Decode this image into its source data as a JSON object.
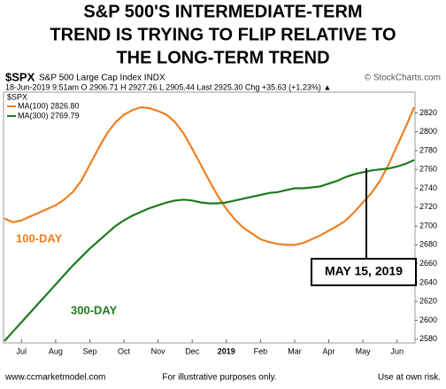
{
  "chart_data": {
    "type": "line",
    "title": [
      "S&P 500'S INTERMEDIATE-TERM",
      "TREND IS TRYING TO FLIP RELATIVE TO",
      "THE LONG-TERM TREND"
    ],
    "symbol": "$SPX",
    "index_name": "S&P 500 Large Cap Index INDX",
    "credit": "© StockCharts.com",
    "info_line": "18-Jun-2019 9:51am   O 2906.71  H 2927.26  L 2905.44  Last 2925.30  Chg +35.63 (+1.23%) ▲",
    "legend_title": "$SPX",
    "categories": [
      null,
      null,
      "Jul",
      null,
      null,
      null,
      "Aug",
      null,
      null,
      null,
      "Sep",
      null,
      null,
      null,
      "Oct",
      null,
      null,
      null,
      "Nov",
      null,
      null,
      null,
      "Dec",
      null,
      null,
      null,
      "2019",
      null,
      null,
      null,
      "Feb",
      null,
      null,
      null,
      "Mar",
      null,
      null,
      null,
      "Apr",
      null,
      null,
      null,
      "May",
      null,
      null,
      null,
      "Jun",
      null,
      null
    ],
    "series": [
      {
        "name": "MA(100) 2826.80",
        "color": "#f07f21",
        "values": [
          2708,
          2704,
          2706,
          2710,
          2714,
          2718,
          2722,
          2728,
          2736,
          2748,
          2765,
          2782,
          2798,
          2810,
          2818,
          2823,
          2826,
          2825,
          2822,
          2818,
          2810,
          2798,
          2782,
          2765,
          2748,
          2732,
          2718,
          2707,
          2698,
          2692,
          2686,
          2683,
          2681,
          2680,
          2680,
          2682,
          2686,
          2690,
          2695,
          2700,
          2706,
          2715,
          2725,
          2735,
          2748,
          2765,
          2785,
          2805,
          2826
        ]
      },
      {
        "name": "MA(300) 2769.79",
        "color": "#1e7a1e",
        "values": [
          2578,
          2588,
          2598,
          2608,
          2618,
          2628,
          2638,
          2648,
          2658,
          2667,
          2676,
          2684,
          2692,
          2700,
          2706,
          2711,
          2715,
          2719,
          2722,
          2725,
          2727,
          2728,
          2727,
          2725,
          2724,
          2724,
          2725,
          2727,
          2729,
          2731,
          2733,
          2735,
          2736,
          2738,
          2740,
          2740,
          2741,
          2742,
          2745,
          2748,
          2752,
          2755,
          2757,
          2759,
          2760,
          2761,
          2763,
          2766,
          2770
        ]
      }
    ],
    "ylim": [
      2576,
      2842
    ],
    "yticks": [
      2580,
      2600,
      2620,
      2640,
      2660,
      2680,
      2700,
      2720,
      2740,
      2760,
      2780,
      2800,
      2820
    ],
    "annotations": [
      {
        "text": "100-DAY",
        "color": "#f07f21"
      },
      {
        "text": "300-DAY",
        "color": "#1e7a1e"
      },
      {
        "text": "MAY 15, 2019",
        "color": "#000000"
      }
    ],
    "footer": [
      "www.ccmarketmodel.com",
      "For illustrative purposes only.",
      "Use at own risk."
    ]
  }
}
